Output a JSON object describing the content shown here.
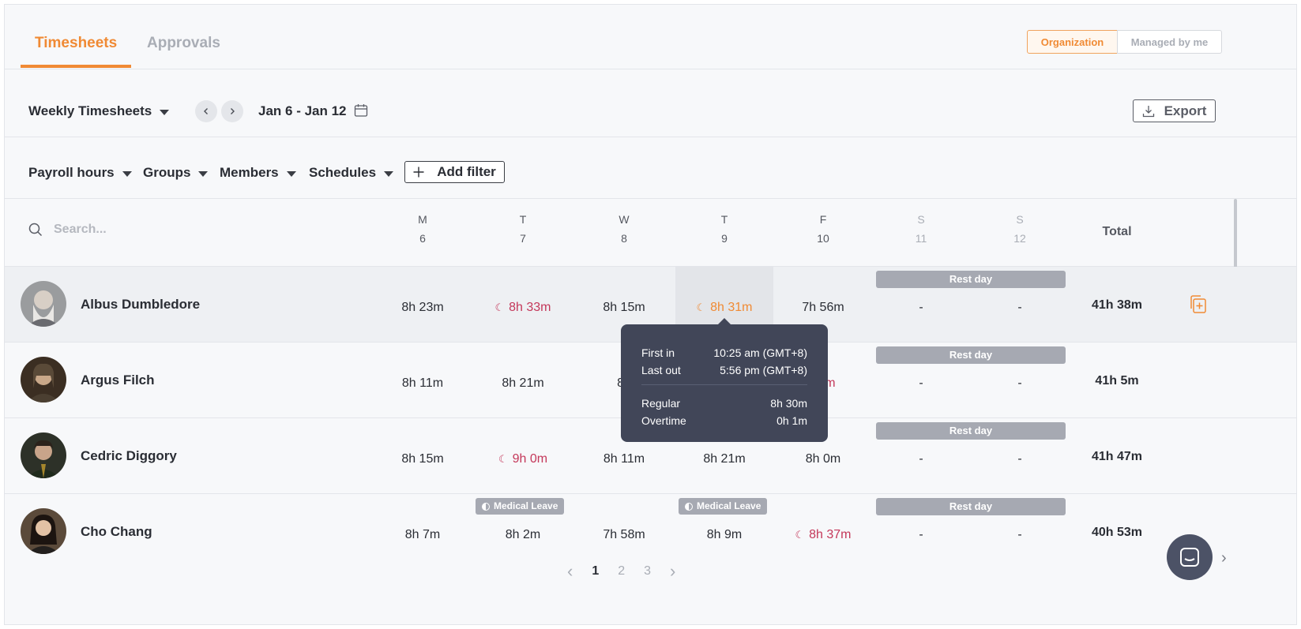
{
  "tabs": [
    {
      "label": "Timesheets",
      "active": true
    },
    {
      "label": "Approvals",
      "active": false
    }
  ],
  "scope_toggle": {
    "options": [
      "Organization",
      "Managed by me"
    ],
    "selected": "Organization"
  },
  "toolbar": {
    "view_label": "Weekly Timesheets",
    "date_range": "Jan 6 - Jan 12",
    "export_label": "Export"
  },
  "filters": {
    "items": [
      "Payroll hours",
      "Groups",
      "Members",
      "Schedules"
    ],
    "add_filter_label": "Add filter"
  },
  "search": {
    "placeholder": "Search..."
  },
  "days": [
    {
      "letter": "M",
      "date": "6"
    },
    {
      "letter": "T",
      "date": "7"
    },
    {
      "letter": "W",
      "date": "8"
    },
    {
      "letter": "T",
      "date": "9"
    },
    {
      "letter": "F",
      "date": "10"
    },
    {
      "letter": "S",
      "date": "11"
    },
    {
      "letter": "S",
      "date": "12"
    }
  ],
  "total_header": "Total",
  "rest_day_label": "Rest day",
  "members": [
    {
      "name": "Albus Dumbledore",
      "hours": [
        "8h 23m",
        "8h 33m",
        "8h 15m",
        "8h 31m",
        "7h 56m",
        "-",
        "-"
      ],
      "total": "41h 38m"
    },
    {
      "name": "Argus Filch",
      "hours": [
        "8h 11m",
        "8h 21m",
        "8h",
        "",
        "32m",
        "-",
        "-"
      ],
      "total": "41h 5m"
    },
    {
      "name": "Cedric Diggory",
      "hours": [
        "8h 15m",
        "9h 0m",
        "8h 11m",
        "8h 21m",
        "8h 0m",
        "-",
        "-"
      ],
      "total": "41h 47m"
    },
    {
      "name": "Cho Chang",
      "hours": [
        "8h 7m",
        "8h 2m",
        "7h 58m",
        "8h 9m",
        "8h 37m",
        "-",
        "-"
      ],
      "total": "40h 53m"
    }
  ],
  "leave_label": "Medical Leave",
  "tooltip": {
    "first_in_label": "First in",
    "first_in_value": "10:25 am (GMT+8)",
    "last_out_label": "Last out",
    "last_out_value": "5:56 pm (GMT+8)",
    "regular_label": "Regular",
    "regular_value": "8h 30m",
    "overtime_label": "Overtime",
    "overtime_value": "0h 1m"
  },
  "pagination": {
    "pages": [
      "1",
      "2",
      "3"
    ],
    "current": "1"
  },
  "colors": {
    "accent": "#f08a34",
    "overtime": "#c4385a",
    "rest_badge": "#a6a9b2",
    "tooltip_bg": "#414658"
  }
}
